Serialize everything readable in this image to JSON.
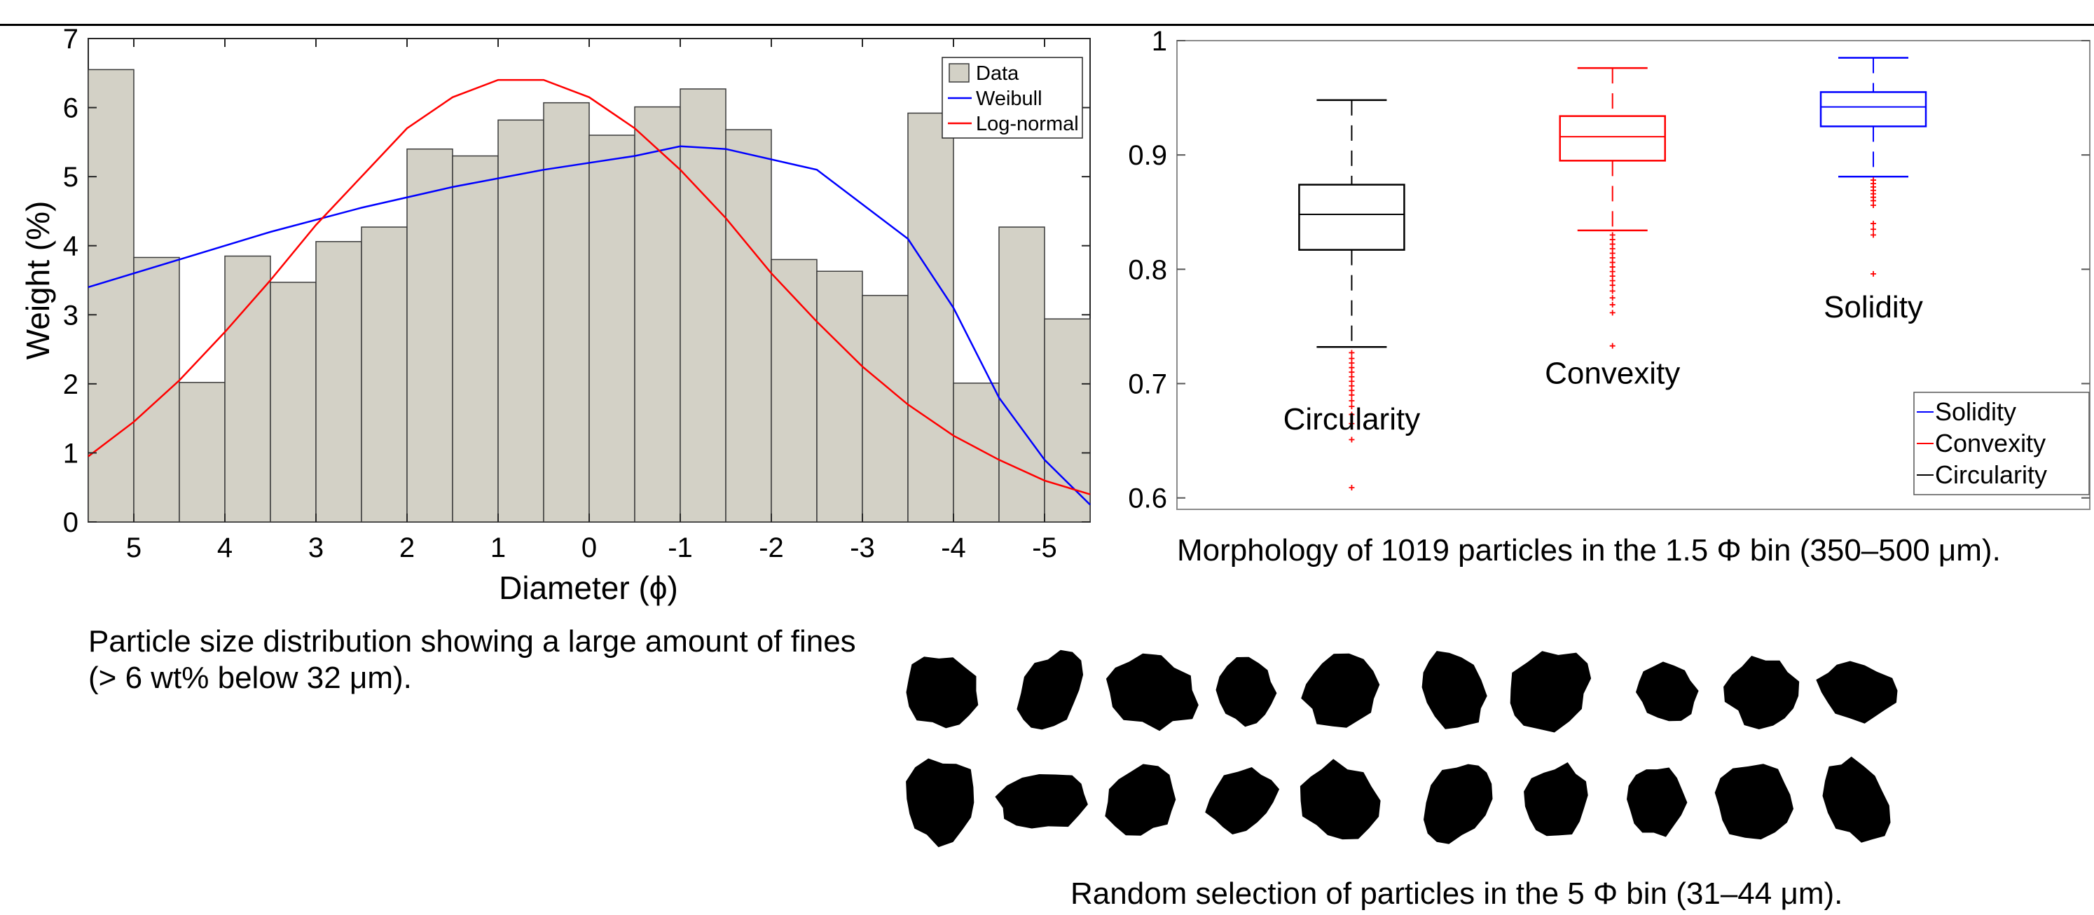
{
  "chart_data": [
    {
      "type": "bar",
      "title": "",
      "xlabel": "Diameter (ϕ)",
      "ylabel": "Weight (%)",
      "x_reversed": true,
      "xlim": [
        5.5,
        -5.5
      ],
      "ylim": [
        0,
        7
      ],
      "x_ticks": [
        5,
        4,
        3,
        2,
        1,
        0,
        -1,
        -2,
        -3,
        -4,
        -5
      ],
      "y_ticks": [
        0,
        1,
        2,
        3,
        4,
        5,
        6,
        7
      ],
      "bar_width": 0.5,
      "bar_centers": [
        5.25,
        4.75,
        4.25,
        3.75,
        3.25,
        2.75,
        2.25,
        1.75,
        1.25,
        0.75,
        0.25,
        -0.25,
        -0.75,
        -1.25,
        -1.75,
        -2.25,
        -2.75,
        -3.25,
        -3.75,
        -4.25,
        -4.75,
        -5.25
      ],
      "series": [
        {
          "name": "Data",
          "kind": "bar",
          "color": "#d3d1c6",
          "values": [
            6.55,
            3.83,
            2.02,
            3.85,
            3.47,
            4.06,
            4.27,
            5.4,
            5.3,
            5.82,
            6.07,
            5.6,
            6.01,
            6.27,
            5.68,
            3.8,
            3.63,
            3.28,
            5.92,
            2.01,
            4.27,
            2.94
          ]
        },
        {
          "name": "Weibull",
          "kind": "line",
          "color": "#0000ff",
          "x": [
            5.5,
            4.5,
            3.5,
            2.5,
            1.5,
            0.5,
            -0.5,
            -1.0,
            -1.5,
            -2.5,
            -3.5,
            -4.0,
            -4.5,
            -5.0,
            -5.5
          ],
          "y": [
            3.4,
            3.8,
            4.2,
            4.55,
            4.85,
            5.1,
            5.3,
            5.44,
            5.4,
            5.1,
            4.1,
            3.1,
            1.8,
            0.9,
            0.25
          ]
        },
        {
          "name": "Log-normal",
          "kind": "line",
          "color": "#ff0000",
          "x": [
            5.5,
            5.0,
            4.5,
            4.0,
            3.5,
            3.0,
            2.5,
            2.0,
            1.5,
            1.0,
            0.5,
            0.0,
            -0.5,
            -1.0,
            -1.5,
            -2.0,
            -2.5,
            -3.0,
            -3.5,
            -4.0,
            -4.5,
            -5.0,
            -5.5
          ],
          "y": [
            0.95,
            1.45,
            2.05,
            2.75,
            3.5,
            4.3,
            5.0,
            5.7,
            6.15,
            6.4,
            6.4,
            6.15,
            5.7,
            5.1,
            4.4,
            3.6,
            2.9,
            2.25,
            1.7,
            1.25,
            0.9,
            0.6,
            0.4
          ]
        }
      ],
      "legend": [
        "Data",
        "Weibull",
        "Log-normal"
      ],
      "legend_position": "top-right",
      "grid": false
    },
    {
      "type": "box",
      "title": "",
      "ylim": [
        0.59,
        1.0
      ],
      "y_ticks": [
        0.6,
        0.7,
        0.8,
        0.9,
        1
      ],
      "y_tick_labels": [
        "0.6",
        "0.7",
        "0.8",
        "0.9",
        "1"
      ],
      "series": [
        {
          "name": "Circularity",
          "color": "#000000",
          "position": 1,
          "whisker_low": 0.732,
          "q1": 0.817,
          "median": 0.848,
          "q3": 0.874,
          "whisker_high": 0.948,
          "outliers": [
            0.727,
            0.722,
            0.718,
            0.714,
            0.71,
            0.706,
            0.702,
            0.698,
            0.694,
            0.69,
            0.685,
            0.68,
            0.673,
            0.665,
            0.651,
            0.609
          ]
        },
        {
          "name": "Convexity",
          "color": "#ff0000",
          "position": 2,
          "whisker_low": 0.834,
          "q1": 0.895,
          "median": 0.916,
          "q3": 0.934,
          "whisker_high": 0.976,
          "outliers": [
            0.83,
            0.826,
            0.822,
            0.818,
            0.814,
            0.81,
            0.806,
            0.802,
            0.798,
            0.794,
            0.79,
            0.786,
            0.781,
            0.775,
            0.769,
            0.762,
            0.733
          ]
        },
        {
          "name": "Solidity",
          "color": "#0000ff",
          "position": 3,
          "whisker_low": 0.881,
          "q1": 0.925,
          "median": 0.942,
          "q3": 0.955,
          "whisker_high": 0.985,
          "outliers": [
            0.878,
            0.875,
            0.872,
            0.869,
            0.866,
            0.863,
            0.86,
            0.856,
            0.84,
            0.835,
            0.83,
            0.796
          ]
        }
      ],
      "annotations": [
        "Circularity",
        "Convexity",
        "Solidity"
      ],
      "legend": [
        "Solidity",
        "Convexity",
        "Circularity"
      ],
      "legend_position": "bottom-right",
      "grid": false
    }
  ],
  "captions": {
    "psd": "Particle size distribution showing a large amount of fines (> 6 wt% below 32 μm).",
    "morphology": "Morphology of 1019 particles in the 1.5 Φ bin (350–500 μm).",
    "particles": "Random selection of particles in the 5 Φ bin (31–44 μm)."
  },
  "particles": {
    "count": 20,
    "rows": 2,
    "per_row": 10,
    "color": "#000000"
  }
}
